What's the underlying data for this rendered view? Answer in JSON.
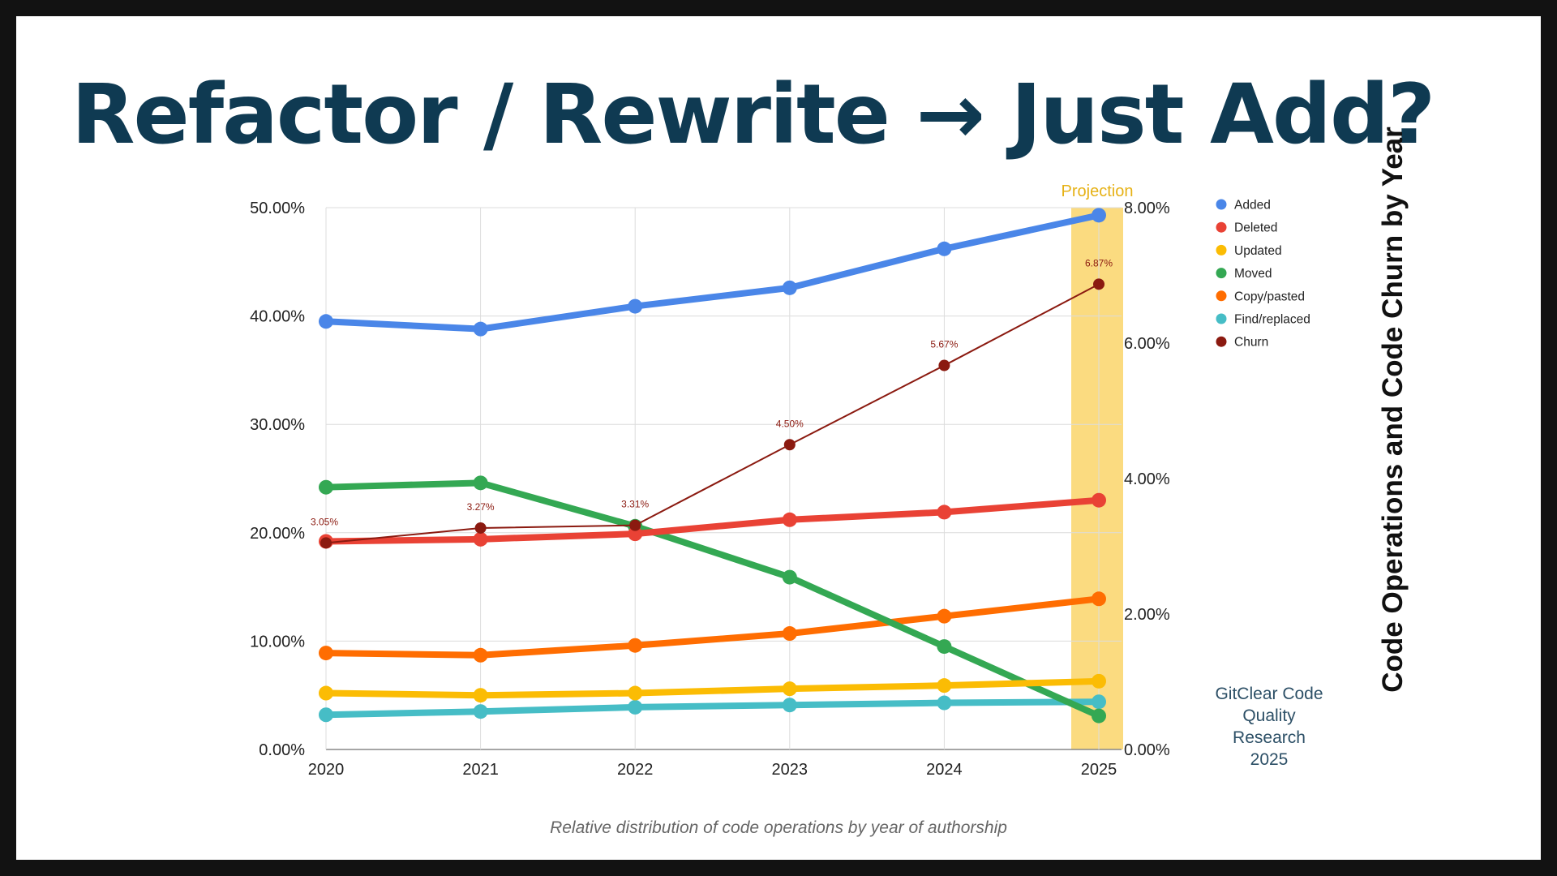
{
  "slide": {
    "title": "Refactor / Rewrite → Just Add?",
    "vertical_title": "Code Operations and Code Churn by Year",
    "credit_lines": [
      "GitClear Code",
      "Quality",
      "Research",
      "2025"
    ]
  },
  "chart_data": {
    "type": "line",
    "x": [
      "2020",
      "2021",
      "2022",
      "2023",
      "2024",
      "2025"
    ],
    "xlabel": "Relative distribution of code operations by year of authorship",
    "left_axis": {
      "range": [
        0,
        50
      ],
      "ticks": [
        "0.00%",
        "10.00%",
        "20.00%",
        "30.00%",
        "40.00%",
        "50.00%"
      ]
    },
    "right_axis": {
      "range": [
        0,
        8
      ],
      "ticks": [
        "0.00%",
        "2.00%",
        "4.00%",
        "6.00%",
        "8.00%"
      ]
    },
    "projection": {
      "label": "Projection",
      "year": "2025",
      "color": "#fbdb80"
    },
    "grid": true,
    "legend_position": "right",
    "series": [
      {
        "name": "Added",
        "axis": "left",
        "color": "#4a86e8",
        "values": [
          39.5,
          38.8,
          40.9,
          42.6,
          46.2,
          49.3
        ]
      },
      {
        "name": "Deleted",
        "axis": "left",
        "color": "#e94235",
        "values": [
          19.2,
          19.4,
          19.9,
          21.2,
          21.9,
          23.0
        ]
      },
      {
        "name": "Updated",
        "axis": "left",
        "color": "#fbbc04",
        "values": [
          5.2,
          5.0,
          5.2,
          5.6,
          5.9,
          6.3
        ]
      },
      {
        "name": "Moved",
        "axis": "left",
        "color": "#34a853",
        "values": [
          24.2,
          24.6,
          20.6,
          15.9,
          9.5,
          3.1
        ]
      },
      {
        "name": "Copy/pasted",
        "axis": "left",
        "color": "#ff6d01",
        "values": [
          8.9,
          8.7,
          9.6,
          10.7,
          12.3,
          13.9
        ]
      },
      {
        "name": "Find/replaced",
        "axis": "left",
        "color": "#46bdc6",
        "values": [
          3.2,
          3.5,
          3.9,
          4.1,
          4.3,
          4.4
        ]
      },
      {
        "name": "Churn",
        "axis": "right",
        "color": "#8b1a10",
        "values": [
          3.05,
          3.27,
          3.31,
          4.5,
          5.67,
          6.87
        ],
        "labels": [
          "3.05%",
          "3.27%",
          "3.31%",
          "4.50%",
          "5.67%",
          "6.87%"
        ]
      }
    ]
  }
}
